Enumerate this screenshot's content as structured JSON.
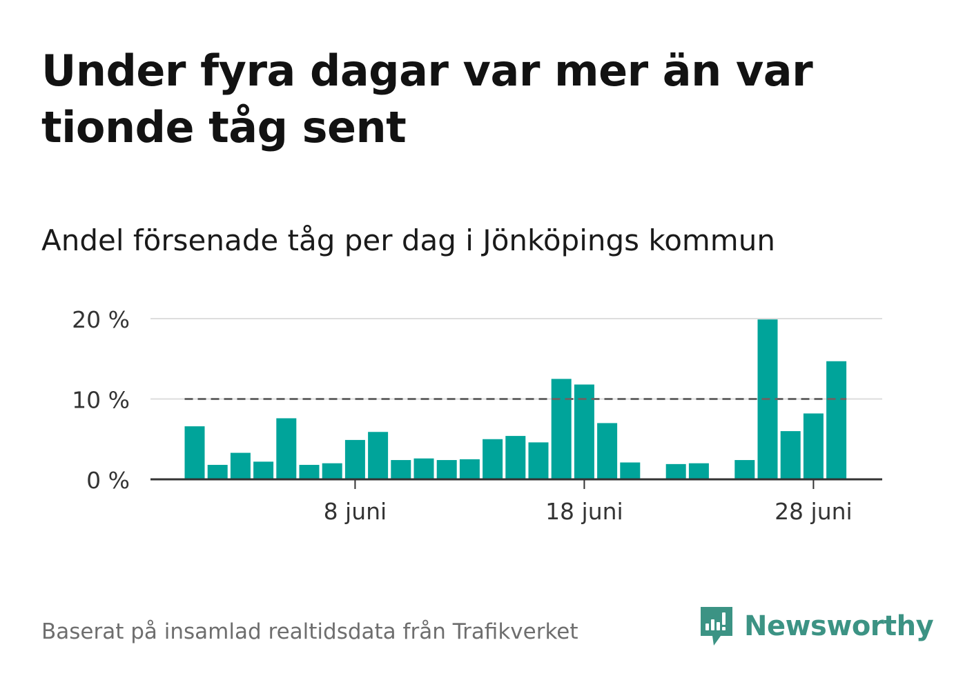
{
  "title": "Under fyra dagar var mer än var tionde tåg sent",
  "subtitle": "Andel försenade tåg per dag i Jönköpings kommun",
  "source": "Baserat på insamlad realtidsdata från Trafikverket",
  "brand": {
    "name": "Newsworthy",
    "icon": "newsworthy-logo-icon",
    "color": "#3c9384"
  },
  "colors": {
    "bar": "#00a49a",
    "grid": "#dddddd",
    "axis": "#333333",
    "reference": "#666666"
  },
  "chart_data": {
    "type": "bar",
    "title": "",
    "xlabel": "",
    "ylabel": "",
    "ylim": [
      0,
      20
    ],
    "y_ticks": [
      {
        "value": 0,
        "label": "0 %"
      },
      {
        "value": 10,
        "label": "10 %"
      },
      {
        "value": 20,
        "label": "20 %"
      }
    ],
    "x_ticks": [
      {
        "day": 8,
        "label": "8 juni"
      },
      {
        "day": 18,
        "label": "18 juni"
      },
      {
        "day": 28,
        "label": "28 juni"
      }
    ],
    "reference_line": {
      "value": 10,
      "style": "dashed"
    },
    "grid": true,
    "x": [
      "1 juni",
      "2 juni",
      "3 juni",
      "4 juni",
      "5 juni",
      "6 juni",
      "7 juni",
      "8 juni",
      "9 juni",
      "10 juni",
      "11 juni",
      "12 juni",
      "13 juni",
      "14 juni",
      "15 juni",
      "16 juni",
      "17 juni",
      "18 juni",
      "19 juni",
      "20 juni",
      "21 juni",
      "22 juni",
      "23 juni",
      "24 juni",
      "25 juni",
      "26 juni",
      "27 juni",
      "28 juni",
      "29 juni"
    ],
    "days": [
      1,
      2,
      3,
      4,
      5,
      6,
      7,
      8,
      9,
      10,
      11,
      12,
      13,
      14,
      15,
      16,
      17,
      18,
      19,
      20,
      21,
      22,
      23,
      24,
      25,
      26,
      27,
      28,
      29
    ],
    "values": [
      6.6,
      1.8,
      3.3,
      2.2,
      7.6,
      1.8,
      2.0,
      4.9,
      5.9,
      2.4,
      2.6,
      2.4,
      2.5,
      5.0,
      5.4,
      4.6,
      12.5,
      11.8,
      7.0,
      2.1,
      null,
      1.9,
      2.0,
      null,
      2.4,
      19.9,
      6.0,
      8.2,
      14.7
    ]
  }
}
